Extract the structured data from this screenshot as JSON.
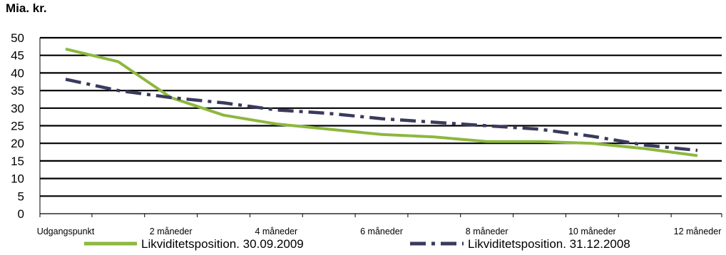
{
  "chart_data": {
    "type": "line",
    "unit_label": "Mia. kr.",
    "title": "",
    "xlabel": "",
    "ylabel": "",
    "ylim": [
      0,
      50
    ],
    "yticks": [
      0,
      5,
      10,
      15,
      20,
      25,
      30,
      35,
      40,
      45,
      50
    ],
    "grid": true,
    "legend_position": "bottom",
    "x_tick_labels": [
      "Udgangspunkt",
      "2 måneder",
      "4 måneder",
      "6 måneder",
      "8 måneder",
      "10 måneder",
      "12 måneder"
    ],
    "x": [
      0,
      1,
      2,
      3,
      4,
      5,
      6,
      7,
      8,
      9,
      10,
      11,
      12
    ],
    "series": [
      {
        "name": "Likviditetsposition. 30.09.2009",
        "color": "#8CB83F",
        "style": "solid",
        "values": [
          46.8,
          43.2,
          33.0,
          28.0,
          25.5,
          24.0,
          22.5,
          21.8,
          20.5,
          20.5,
          20.0,
          18.5,
          16.5
        ]
      },
      {
        "name": "Likviditetsposition. 31.12.2008",
        "color": "#3A3A5E",
        "style": "dash-dot",
        "values": [
          38.2,
          35.0,
          33.0,
          31.5,
          29.5,
          28.5,
          27.0,
          26.0,
          25.0,
          24.0,
          22.0,
          19.5,
          18.0
        ]
      }
    ]
  }
}
